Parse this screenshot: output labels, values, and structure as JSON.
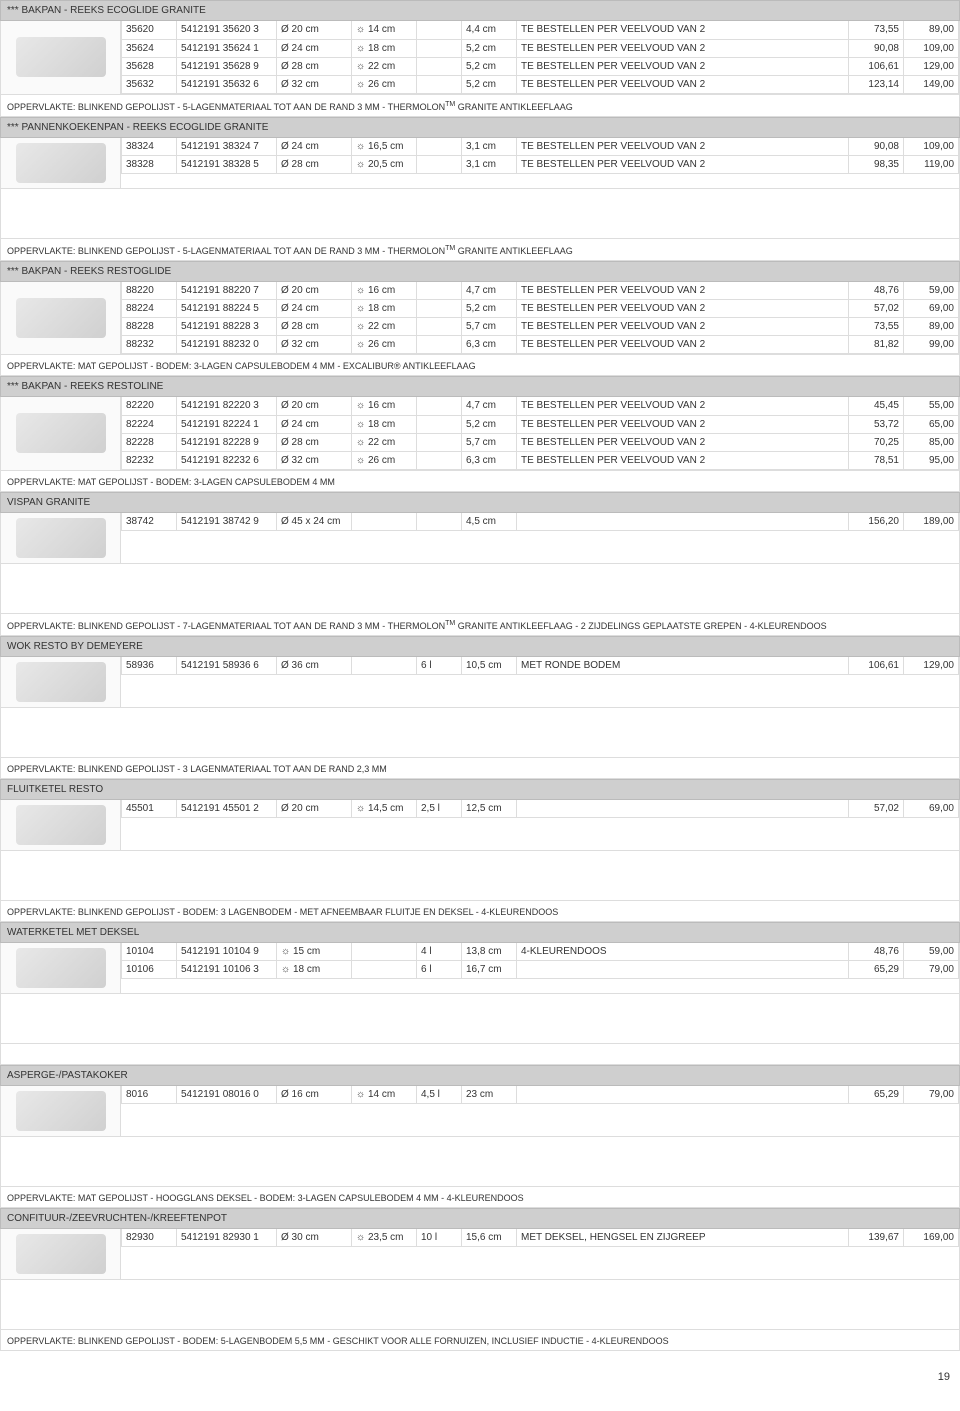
{
  "pageNumber": "19",
  "sections": [
    {
      "title": "*** BAKPAN - REEKS ECOGLIDE GRANITE",
      "rows": [
        {
          "code": "35620",
          "ean": "5412191 35620 3",
          "dia": "Ø 20 cm",
          "d2": "☼ 14 cm",
          "d3": "",
          "d4": "4,4 cm",
          "desc": "TE BESTELLEN PER VEELVOUD VAN 2",
          "p1": "73,55",
          "p2": "89,00"
        },
        {
          "code": "35624",
          "ean": "5412191 35624 1",
          "dia": "Ø 24 cm",
          "d2": "☼ 18 cm",
          "d3": "",
          "d4": "5,2 cm",
          "desc": "TE BESTELLEN PER VEELVOUD VAN 2",
          "p1": "90,08",
          "p2": "109,00"
        },
        {
          "code": "35628",
          "ean": "5412191 35628 9",
          "dia": "Ø 28 cm",
          "d2": "☼ 22 cm",
          "d3": "",
          "d4": "5,2 cm",
          "desc": "TE BESTELLEN PER VEELVOUD VAN 2",
          "p1": "106,61",
          "p2": "129,00"
        },
        {
          "code": "35632",
          "ean": "5412191 35632 6",
          "dia": "Ø 32 cm",
          "d2": "☼ 26 cm",
          "d3": "",
          "d4": "5,2 cm",
          "desc": "TE BESTELLEN PER VEELVOUD VAN 2",
          "p1": "123,14",
          "p2": "149,00"
        }
      ],
      "note": "OPPERVLAKTE: BLINKEND GEPOLIJST - 5-LAGENMATERIAAL TOT AAN DE RAND 3 MM - THERMOLON™ GRANITE ANTIKLEEFLAAG"
    },
    {
      "title": "*** PANNENKOEKENPAN - REEKS ECOGLIDE GRANITE",
      "rows": [
        {
          "code": "38324",
          "ean": "5412191 38324 7",
          "dia": "Ø 24 cm",
          "d2": "☼ 16,5 cm",
          "d3": "",
          "d4": "3,1 cm",
          "desc": "TE BESTELLEN PER VEELVOUD VAN 2",
          "p1": "90,08",
          "p2": "109,00"
        },
        {
          "code": "38328",
          "ean": "5412191 38328 5",
          "dia": "Ø 28 cm",
          "d2": "☼ 20,5 cm",
          "d3": "",
          "d4": "3,1 cm",
          "desc": "TE BESTELLEN PER VEELVOUD VAN 2",
          "p1": "98,35",
          "p2": "119,00"
        }
      ],
      "spacer": true,
      "note": "OPPERVLAKTE: BLINKEND GEPOLIJST - 5-LAGENMATERIAAL TOT AAN DE RAND 3 MM - THERMOLON™ GRANITE ANTIKLEEFLAAG"
    },
    {
      "title": "*** BAKPAN - REEKS RESTOGLIDE",
      "rows": [
        {
          "code": "88220",
          "ean": "5412191 88220 7",
          "dia": "Ø 20 cm",
          "d2": "☼ 16 cm",
          "d3": "",
          "d4": "4,7 cm",
          "desc": "TE BESTELLEN PER VEELVOUD VAN 2",
          "p1": "48,76",
          "p2": "59,00"
        },
        {
          "code": "88224",
          "ean": "5412191 88224 5",
          "dia": "Ø 24 cm",
          "d2": "☼ 18 cm",
          "d3": "",
          "d4": "5,2 cm",
          "desc": "TE BESTELLEN PER VEELVOUD VAN 2",
          "p1": "57,02",
          "p2": "69,00"
        },
        {
          "code": "88228",
          "ean": "5412191 88228 3",
          "dia": "Ø 28 cm",
          "d2": "☼ 22 cm",
          "d3": "",
          "d4": "5,7 cm",
          "desc": "TE BESTELLEN PER VEELVOUD VAN 2",
          "p1": "73,55",
          "p2": "89,00"
        },
        {
          "code": "88232",
          "ean": "5412191 88232 0",
          "dia": "Ø 32 cm",
          "d2": "☼ 26 cm",
          "d3": "",
          "d4": "6,3 cm",
          "desc": "TE BESTELLEN PER VEELVOUD VAN 2",
          "p1": "81,82",
          "p2": "99,00"
        }
      ],
      "note": "OPPERVLAKTE: MAT GEPOLIJST - BODEM: 3-LAGEN CAPSULEBODEM 4 MM - EXCALIBUR® ANTIKLEEFLAAG"
    },
    {
      "title": "*** BAKPAN - REEKS RESTOLINE",
      "rows": [
        {
          "code": "82220",
          "ean": "5412191 82220 3",
          "dia": "Ø 20 cm",
          "d2": "☼ 16 cm",
          "d3": "",
          "d4": "4,7 cm",
          "desc": "TE BESTELLEN PER VEELVOUD VAN 2",
          "p1": "45,45",
          "p2": "55,00"
        },
        {
          "code": "82224",
          "ean": "5412191 82224 1",
          "dia": "Ø 24 cm",
          "d2": "☼ 18 cm",
          "d3": "",
          "d4": "5,2 cm",
          "desc": "TE BESTELLEN PER VEELVOUD VAN 2",
          "p1": "53,72",
          "p2": "65,00"
        },
        {
          "code": "82228",
          "ean": "5412191 82228 9",
          "dia": "Ø 28 cm",
          "d2": "☼ 22 cm",
          "d3": "",
          "d4": "5,7 cm",
          "desc": "TE BESTELLEN PER VEELVOUD VAN 2",
          "p1": "70,25",
          "p2": "85,00"
        },
        {
          "code": "82232",
          "ean": "5412191 82232 6",
          "dia": "Ø 32 cm",
          "d2": "☼ 26 cm",
          "d3": "",
          "d4": "6,3 cm",
          "desc": "TE BESTELLEN PER VEELVOUD VAN 2",
          "p1": "78,51",
          "p2": "95,00"
        }
      ],
      "note": "OPPERVLAKTE: MAT GEPOLIJST - BODEM: 3-LAGEN CAPSULEBODEM 4 MM"
    },
    {
      "title": "VISPAN GRANITE",
      "rows": [
        {
          "code": "38742",
          "ean": "5412191 38742 9",
          "dia": "Ø 45 x 24 cm",
          "d2": "",
          "d3": "",
          "d4": "4,5 cm",
          "desc": "",
          "p1": "156,20",
          "p2": "189,00"
        }
      ],
      "spacer": true,
      "note": "OPPERVLAKTE: BLINKEND GEPOLIJST - 7-LAGENMATERIAAL TOT AAN DE RAND 3 MM - THERMOLON™ GRANITE ANTIKLEEFLAAG - 2 ZIJDELINGS GEPLAATSTE GREPEN - 4-KLEURENDOOS"
    },
    {
      "title": "WOK RESTO BY DEMEYERE",
      "rows": [
        {
          "code": "58936",
          "ean": "5412191 58936 6",
          "dia": "Ø 36 cm",
          "d2": "",
          "d3": "6 l",
          "d4": "10,5 cm",
          "desc": "MET RONDE BODEM",
          "p1": "106,61",
          "p2": "129,00"
        }
      ],
      "spacer": true,
      "note": "OPPERVLAKTE: BLINKEND GEPOLIJST - 3 LAGENMATERIAAL TOT AAN DE RAND 2,3 MM"
    },
    {
      "title": "FLUITKETEL RESTO",
      "rows": [
        {
          "code": "45501",
          "ean": "5412191 45501 2",
          "dia": "Ø 20 cm",
          "d2": "☼ 14,5 cm",
          "d3": "2,5 l",
          "d4": "12,5 cm",
          "desc": "",
          "p1": "57,02",
          "p2": "69,00"
        }
      ],
      "spacer": true,
      "note": "OPPERVLAKTE: BLINKEND GEPOLIJST - BODEM: 3 LAGENBODEM - MET AFNEEMBAAR FLUITJE EN DEKSEL - 4-KLEURENDOOS"
    },
    {
      "title": "WATERKETEL MET DEKSEL",
      "rows": [
        {
          "code": "10104",
          "ean": "5412191 10104 9",
          "dia": "☼ 15 cm",
          "d2": "",
          "d3": "4 l",
          "d4": "13,8 cm",
          "desc": "4-KLEURENDOOS",
          "p1": "48,76",
          "p2": "59,00"
        },
        {
          "code": "10106",
          "ean": "5412191 10106 3",
          "dia": "☼ 18 cm",
          "d2": "",
          "d3": "6 l",
          "d4": "16,7 cm",
          "desc": "",
          "p1": "65,29",
          "p2": "79,00"
        }
      ],
      "spacer": true,
      "note": ""
    },
    {
      "title": "ASPERGE-/PASTAKOKER",
      "rows": [
        {
          "code": "8016",
          "ean": "5412191 08016 0",
          "dia": "Ø 16 cm",
          "d2": "☼ 14 cm",
          "d3": "4,5 l",
          "d4": "23 cm",
          "desc": "",
          "p1": "65,29",
          "p2": "79,00"
        }
      ],
      "spacer": true,
      "note": "OPPERVLAKTE: MAT GEPOLIJST - HOOGGLANS DEKSEL - BODEM: 3-LAGEN CAPSULEBODEM 4 MM - 4-KLEURENDOOS"
    },
    {
      "title": "CONFITUUR-/ZEEVRUCHTEN-/KREEFTENPOT",
      "rows": [
        {
          "code": "82930",
          "ean": "5412191 82930 1",
          "dia": "Ø 30 cm",
          "d2": "☼ 23,5 cm",
          "d3": "10 l",
          "d4": "15,6 cm",
          "desc": "MET DEKSEL, HENGSEL EN ZIJGREEP",
          "p1": "139,67",
          "p2": "169,00"
        }
      ],
      "spacer": true,
      "note": "OPPERVLAKTE: BLINKEND GEPOLIJST - BODEM: 5-LAGENBODEM 5,5 MM - GESCHIKT VOOR ALLE FORNUIZEN, INCLUSIEF INDUCTIE - 4-KLEURENDOOS"
    }
  ]
}
